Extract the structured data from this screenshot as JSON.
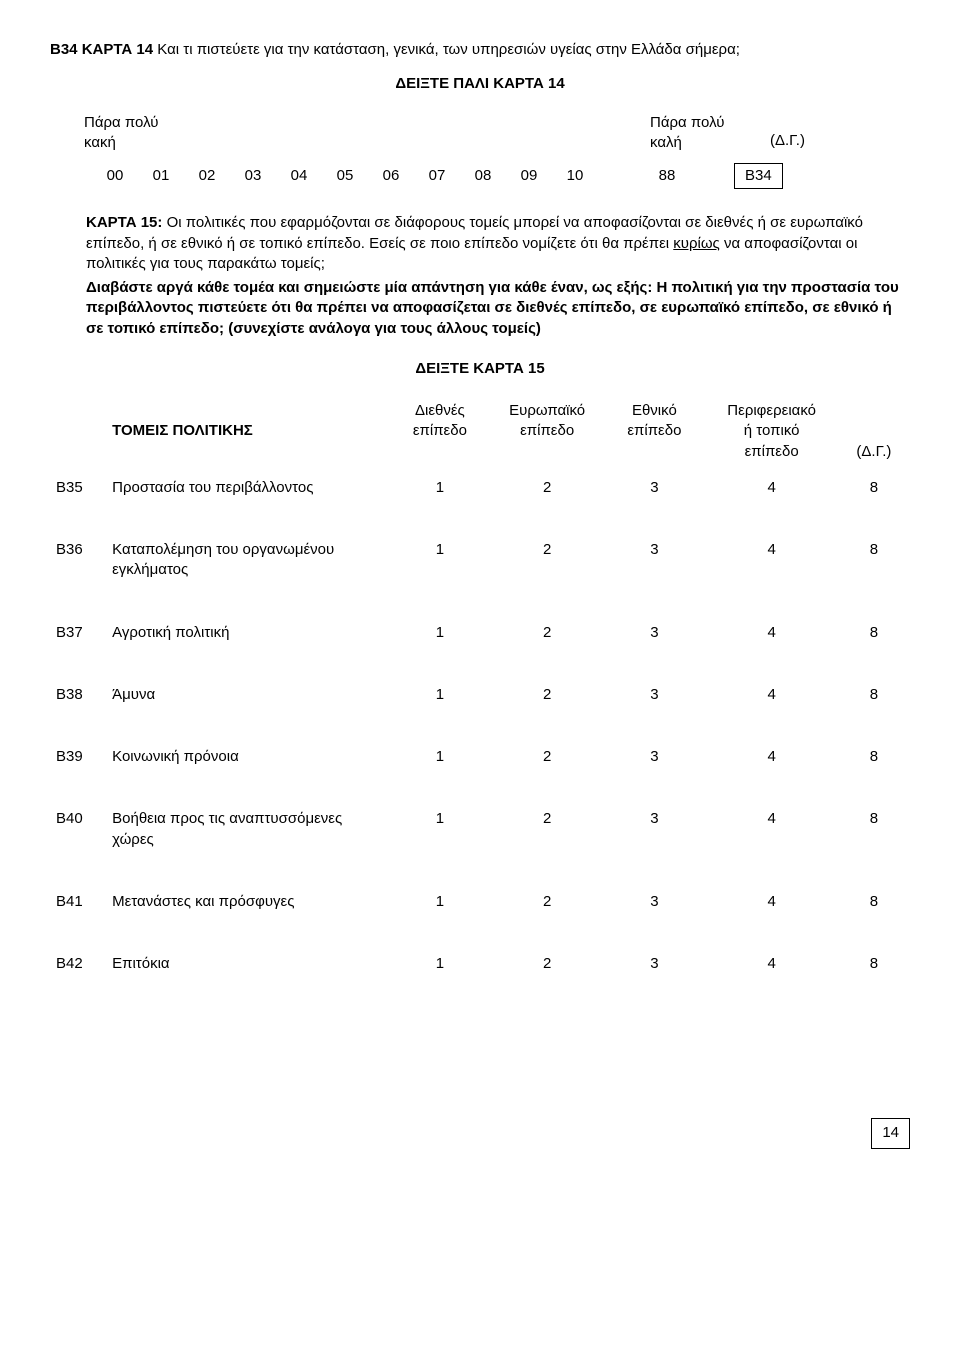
{
  "b34": {
    "code": "B34",
    "card": "ΚΑΡΤΑ 14",
    "question": "Και τι πιστεύετε για την κατάσταση, γενικά, των υπηρεσιών υγείας στην Ελλάδα σήμερα;",
    "show_again": "ΔΕΙΞΤΕ  ΠΑΛΙ  ΚΑΡΤΑ  14",
    "left_label_1": "Πάρα πολύ",
    "left_label_2": "κακή",
    "right_label_1": "Πάρα πολύ",
    "right_label_2": "καλή",
    "dg": "(Δ.Γ.)",
    "numbers": [
      "00",
      "01",
      "02",
      "03",
      "04",
      "05",
      "06",
      "07",
      "08",
      "09",
      "10",
      "88"
    ],
    "end_box": "B34"
  },
  "card15": {
    "title": "ΚΑΡΤΑ 15:",
    "intro": "Οι πολιτικές που εφαρμόζονται σε διάφορους τομείς μπορεί να αποφασίζονται σε διεθνές ή σε ευρωπαϊκό επίπεδο, ή σε εθνικό ή σε τοπικό επίπεδο. Εσείς σε ποιο επίπεδο νομίζετε ότι θα πρέπει ",
    "underlined": "κυρίως",
    "intro2": " να αποφασίζονται οι πολιτικές για τους παρακάτω τομείς;",
    "bold_block": "Διαβάστε αργά κάθε τομέα και σημειώστε μία απάντηση για κάθε έναν, ως εξής: Η πολιτική για την προστασία του περιβάλλοντος πιστεύετε ότι θα πρέπει να αποφασίζεται σε διεθνές επίπεδο, σε ευρωπαϊκό επίπεδο, σε εθνικό ή σε τοπικό επίπεδο; (συνεχίστε ανάλογα για τους άλλους τομείς)",
    "show_card": "ΔΕΙΞΤΕ  ΚΑΡΤΑ  15"
  },
  "table": {
    "col0": "ΤΟΜΕΙΣ ΠΟΛΙΤΙΚΗΣ",
    "col1a": "Διεθνές",
    "col1b": "επίπεδο",
    "col2a": "Ευρωπαϊκό",
    "col2b": "επίπεδο",
    "col3a": "Εθνικό",
    "col3b": "επίπεδο",
    "col4a": "Περιφερειακό",
    "col4b": "ή τοπικό",
    "col4c": "επίπεδο",
    "col5": "(Δ.Γ.)",
    "rows": [
      {
        "code": "B35",
        "label": "Προστασία του περιβάλλοντος",
        "v": [
          "1",
          "2",
          "3",
          "4",
          "8"
        ]
      },
      {
        "code": "B36",
        "label": "Καταπολέμηση του οργανωμένου εγκλήματος",
        "v": [
          "1",
          "2",
          "3",
          "4",
          "8"
        ]
      },
      {
        "code": "B37",
        "label": "Αγροτική πολιτική",
        "v": [
          "1",
          "2",
          "3",
          "4",
          "8"
        ]
      },
      {
        "code": "B38",
        "label": "Άμυνα",
        "v": [
          "1",
          "2",
          "3",
          "4",
          "8"
        ]
      },
      {
        "code": "B39",
        "label": "Κοινωνική πρόνοια",
        "v": [
          "1",
          "2",
          "3",
          "4",
          "8"
        ]
      },
      {
        "code": "B40",
        "label": "Βοήθεια προς τις αναπτυσσόμενες χώρες",
        "v": [
          "1",
          "2",
          "3",
          "4",
          "8"
        ]
      },
      {
        "code": "B41",
        "label": "Μετανάστες και πρόσφυγες",
        "v": [
          "1",
          "2",
          "3",
          "4",
          "8"
        ]
      },
      {
        "code": "B42",
        "label": "Επιτόκια",
        "v": [
          "1",
          "2",
          "3",
          "4",
          "8"
        ]
      }
    ]
  },
  "page_number": "14"
}
